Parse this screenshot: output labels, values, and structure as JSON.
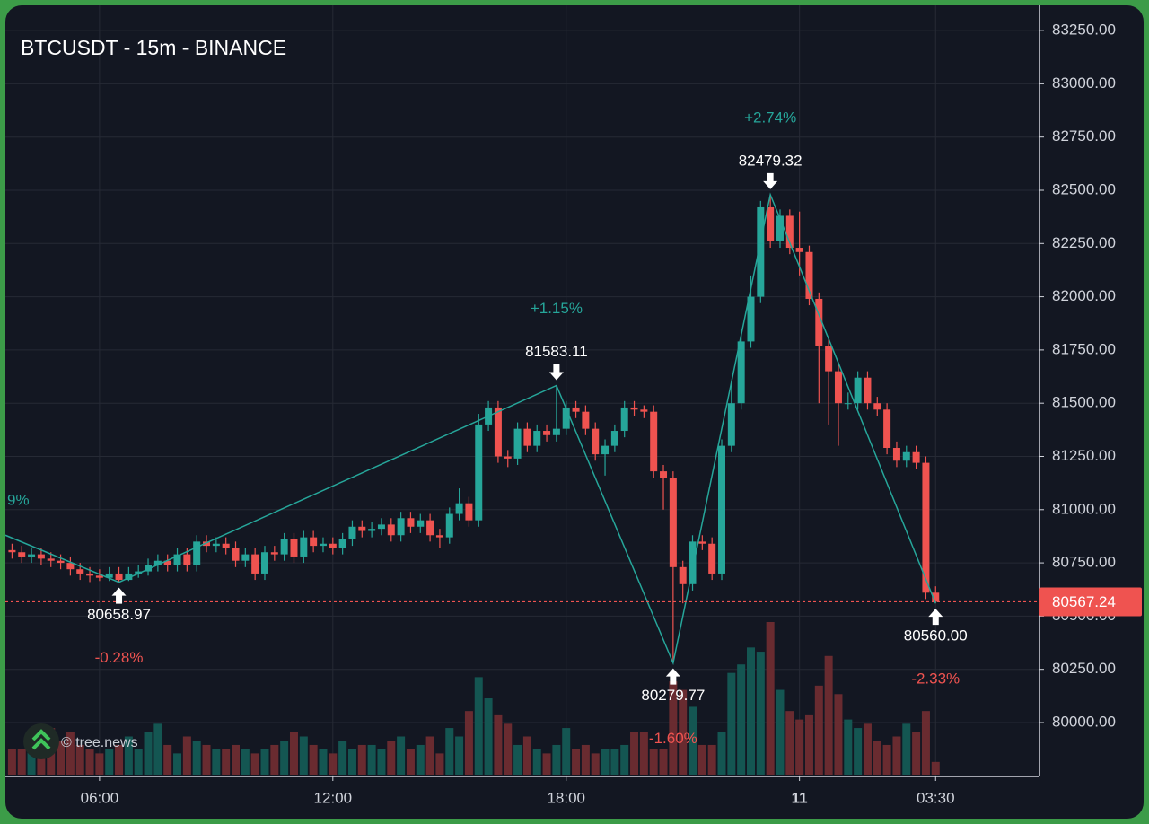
{
  "chart_data": {
    "type": "candlestick",
    "title": "BTCUSDT - 15m - BINANCE",
    "x": [
      "03:45",
      "04:00",
      "04:15",
      "04:30",
      "04:45",
      "05:00",
      "05:15",
      "05:30",
      "05:45",
      "06:00",
      "06:15",
      "06:30",
      "06:45",
      "07:00",
      "07:15",
      "07:30",
      "07:45",
      "08:00",
      "08:15",
      "08:30",
      "08:45",
      "09:00",
      "09:15",
      "09:30",
      "09:45",
      "10:00",
      "10:15",
      "10:30",
      "10:45",
      "11:00",
      "11:15",
      "11:30",
      "11:45",
      "12:00",
      "12:15",
      "12:30",
      "12:45",
      "13:00",
      "13:15",
      "13:30",
      "13:45",
      "14:00",
      "14:15",
      "14:30",
      "14:45",
      "15:00",
      "15:15",
      "15:30",
      "15:45",
      "16:00",
      "16:15",
      "16:30",
      "16:45",
      "17:00",
      "17:15",
      "17:30",
      "17:45",
      "18:00",
      "18:15",
      "18:30",
      "18:45",
      "19:00",
      "19:15",
      "19:30",
      "19:45",
      "20:00",
      "20:15",
      "20:30",
      "20:45",
      "21:00",
      "21:15",
      "21:30",
      "21:45",
      "22:00",
      "22:15",
      "22:30",
      "22:45",
      "23:00",
      "23:15",
      "23:30",
      "23:45",
      "00:00",
      "00:15",
      "00:30",
      "00:45",
      "01:00",
      "01:15",
      "01:30",
      "01:45",
      "02:00",
      "02:15",
      "02:30",
      "02:45",
      "03:00",
      "03:15",
      "03:30"
    ],
    "open": [
      80810,
      80800,
      80780,
      80790,
      80770,
      80760,
      80750,
      80720,
      80700,
      80690,
      80680,
      80700,
      80670,
      80700,
      80710,
      80740,
      80760,
      80740,
      80790,
      80740,
      80850,
      80830,
      80840,
      80820,
      80760,
      80790,
      80700,
      80800,
      80790,
      80860,
      80780,
      80870,
      80830,
      80840,
      80820,
      80860,
      80920,
      80900,
      80910,
      80930,
      80880,
      80960,
      80920,
      80950,
      80880,
      80870,
      80980,
      81030,
      80950,
      81400,
      81480,
      81250,
      81240,
      81380,
      81300,
      81370,
      81350,
      81380,
      81480,
      81460,
      81380,
      81260,
      81300,
      81370,
      81480,
      81470,
      81460,
      81180,
      81150,
      80730,
      80650,
      80850,
      80840,
      80700,
      81300,
      81500,
      81790,
      82000,
      82420,
      82260,
      82380,
      82230,
      82210,
      81990,
      81770,
      81650,
      81500,
      81500,
      81620,
      81500,
      81470,
      81290,
      81230,
      81270,
      81220,
      80610
    ],
    "high": [
      80840,
      80830,
      80820,
      80820,
      80800,
      80790,
      80780,
      80750,
      80730,
      80720,
      80730,
      80730,
      80730,
      80740,
      80770,
      80790,
      80790,
      80820,
      80820,
      80880,
      80880,
      80870,
      80870,
      80850,
      80820,
      80820,
      80830,
      80830,
      80890,
      80890,
      80900,
      80900,
      80870,
      80870,
      80890,
      80950,
      80950,
      80940,
      80960,
      80960,
      80990,
      80990,
      80980,
      80980,
      80910,
      81010,
      81100,
      81060,
      81450,
      81510,
      81510,
      81280,
      81410,
      81410,
      81400,
      81400,
      81583.11,
      81510,
      81510,
      81490,
      81410,
      81330,
      81400,
      81510,
      81510,
      81490,
      81490,
      81210,
      81180,
      80760,
      80880,
      80880,
      80870,
      81330,
      81600,
      81850,
      82100,
      82450,
      82479.32,
      82410,
      82410,
      82400,
      82240,
      82020,
      81800,
      81680,
      81550,
      81650,
      81650,
      81530,
      81500,
      81320,
      81300,
      81300,
      81250,
      80640
    ],
    "low": [
      80770,
      80750,
      80750,
      80740,
      80730,
      80720,
      80690,
      80670,
      80660,
      80665,
      80665,
      80658.97,
      80665,
      80680,
      80690,
      80710,
      80710,
      80710,
      80710,
      80710,
      80800,
      80800,
      80790,
      80730,
      80730,
      80670,
      80670,
      80760,
      80760,
      80750,
      80750,
      80800,
      80800,
      80790,
      80790,
      80830,
      80870,
      80870,
      80880,
      80850,
      80850,
      80890,
      80890,
      80850,
      80820,
      80840,
      80950,
      80920,
      80920,
      81370,
      81220,
      81200,
      81210,
      81270,
      81270,
      81320,
      81320,
      81350,
      81430,
      81350,
      81230,
      81160,
      81270,
      81340,
      81440,
      81430,
      81150,
      81000,
      80279.77,
      80560,
      80620,
      80810,
      80670,
      80670,
      81270,
      81470,
      81760,
      81970,
      82230,
      82230,
      82200,
      82100,
      81960,
      81500,
      81400,
      81300,
      81470,
      81470,
      81470,
      81440,
      81260,
      81200,
      81200,
      81190,
      80580,
      80560.0
    ],
    "close": [
      80800,
      80780,
      80790,
      80770,
      80760,
      80750,
      80720,
      80700,
      80690,
      80680,
      80700,
      80670,
      80700,
      80710,
      80740,
      80760,
      80740,
      80790,
      80740,
      80850,
      80830,
      80840,
      80820,
      80760,
      80790,
      80700,
      80800,
      80790,
      80860,
      80780,
      80870,
      80830,
      80840,
      80820,
      80860,
      80920,
      80900,
      80910,
      80930,
      80880,
      80960,
      80920,
      80950,
      80880,
      80870,
      80980,
      81030,
      80950,
      81400,
      81480,
      81250,
      81240,
      81380,
      81300,
      81370,
      81350,
      81380,
      81480,
      81460,
      81380,
      81260,
      81300,
      81370,
      81480,
      81470,
      81460,
      81180,
      81150,
      80730,
      80650,
      80850,
      80840,
      80700,
      81300,
      81500,
      81790,
      82000,
      82420,
      82260,
      82380,
      82230,
      82210,
      81990,
      81770,
      81650,
      81500,
      81500,
      81620,
      81500,
      81470,
      81290,
      81230,
      81270,
      81220,
      80610,
      80567.24
    ],
    "volume": [
      12,
      12,
      20,
      12,
      22,
      16,
      20,
      14,
      12,
      10,
      12,
      14,
      18,
      12,
      20,
      24,
      14,
      10,
      18,
      16,
      14,
      12,
      12,
      14,
      12,
      10,
      12,
      14,
      16,
      20,
      18,
      14,
      12,
      10,
      16,
      12,
      14,
      14,
      12,
      16,
      18,
      12,
      14,
      18,
      10,
      22,
      18,
      30,
      46,
      36,
      28,
      24,
      14,
      18,
      12,
      10,
      14,
      22,
      12,
      14,
      10,
      12,
      12,
      14,
      20,
      20,
      12,
      12,
      44,
      40,
      32,
      14,
      14,
      20,
      48,
      52,
      60,
      58,
      72,
      40,
      30,
      26,
      28,
      42,
      56,
      38,
      26,
      22,
      24,
      16,
      14,
      18,
      24,
      20,
      30,
      6
    ],
    "up_color": "#26a69a",
    "down_color": "#ef5350",
    "ylim": [
      79747,
      83360
    ],
    "yticks": [
      {
        "value": 80000,
        "label": "80000.00"
      },
      {
        "value": 80250,
        "label": "80250.00"
      },
      {
        "value": 80500,
        "label": "80500.00"
      },
      {
        "value": 80750,
        "label": "80750.00"
      },
      {
        "value": 81000,
        "label": "81000.00"
      },
      {
        "value": 81250,
        "label": "81250.00"
      },
      {
        "value": 81500,
        "label": "81500.00"
      },
      {
        "value": 81750,
        "label": "81750.00"
      },
      {
        "value": 82000,
        "label": "82000.00"
      },
      {
        "value": 82250,
        "label": "82250.00"
      },
      {
        "value": 82500,
        "label": "82500.00"
      },
      {
        "value": 82750,
        "label": "82750.00"
      },
      {
        "value": 83000,
        "label": "83000.00"
      },
      {
        "value": 83250,
        "label": "83250.00"
      }
    ],
    "xticks": [
      "06:00",
      "12:00",
      "18:00",
      {
        "value": "00:00",
        "label": "11"
      },
      "03:30"
    ],
    "grid": true,
    "last_price": 80567.24,
    "zigzag_start": 80880,
    "partial_label": "9%",
    "pivots": [
      {
        "x": "06:30",
        "kind": "low",
        "price": 80658.97,
        "label": "80658.97",
        "change": "-0.28%"
      },
      {
        "x": "17:45",
        "kind": "high",
        "price": 81583.11,
        "label": "81583.11",
        "change": "+1.15%"
      },
      {
        "x": "20:45",
        "kind": "low",
        "price": 80279.77,
        "label": "80279.77",
        "change": "-1.60%"
      },
      {
        "x": "23:15",
        "kind": "high",
        "price": 82479.32,
        "label": "82479.32",
        "change": "+2.74%"
      },
      {
        "x": "03:30",
        "kind": "low",
        "price": 80560.0,
        "label": "80560.00",
        "change": "-2.33%"
      }
    ]
  },
  "watermark": "© tree.news"
}
